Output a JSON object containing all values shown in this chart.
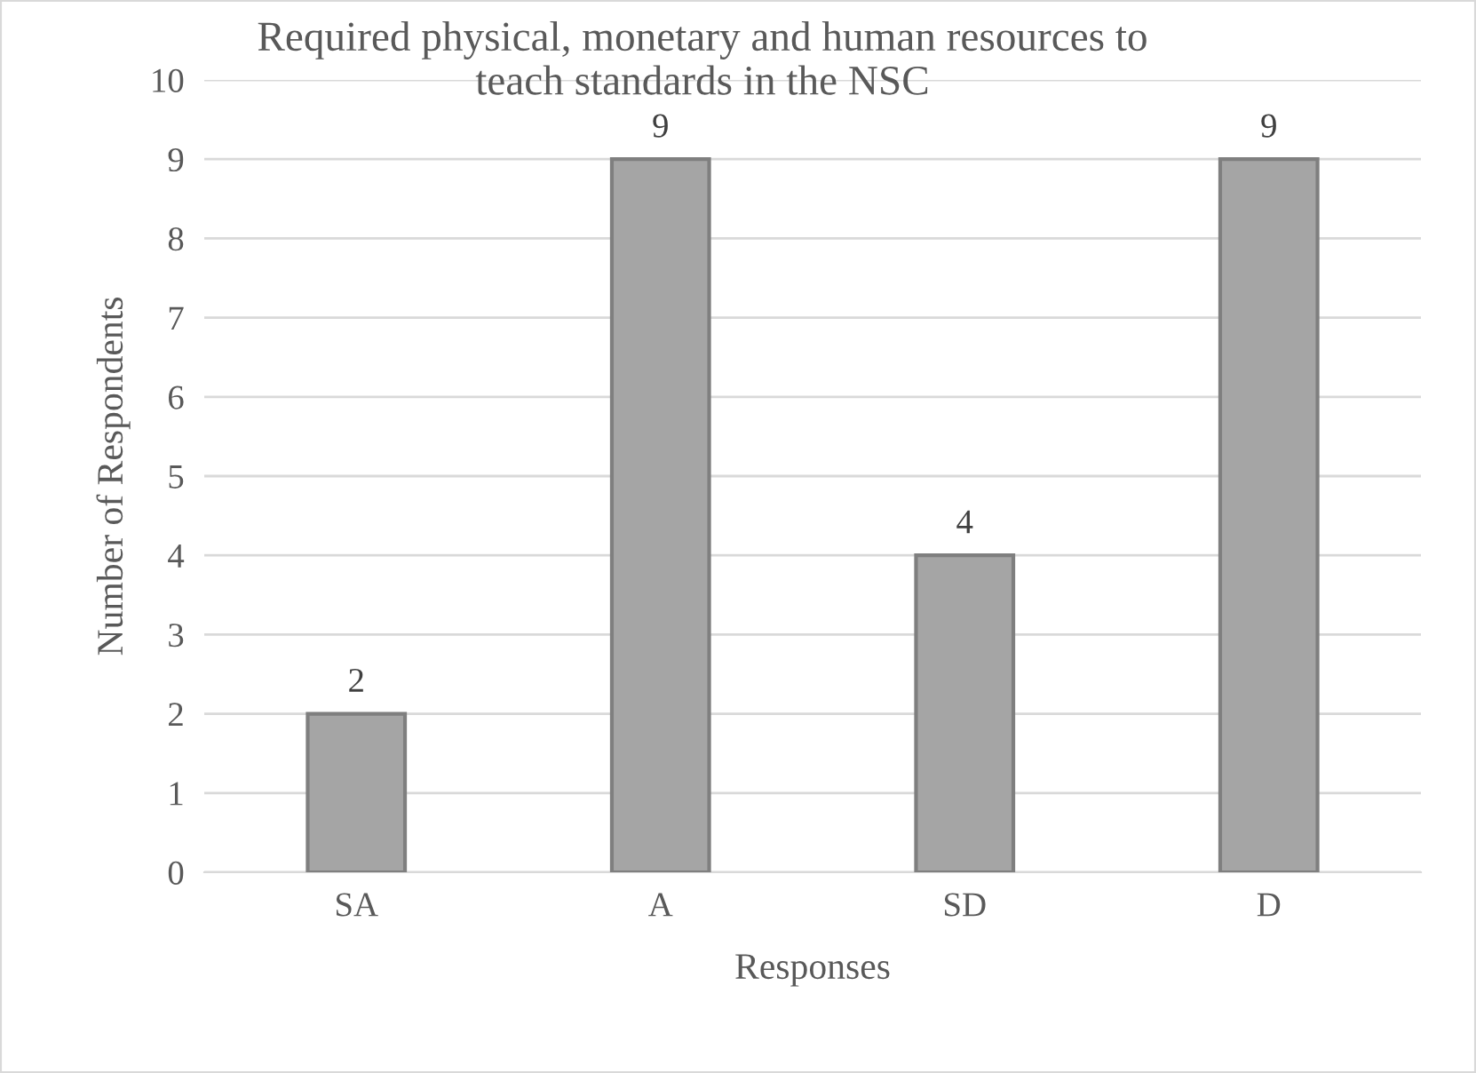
{
  "chart_data": {
    "type": "bar",
    "title": "Required physical, monetary and human resources to\nteach standards in the NSC",
    "xlabel": "Responses",
    "ylabel": "Number of Respondents",
    "categories": [
      "SA",
      "A",
      "SD",
      "D"
    ],
    "values": [
      2,
      9,
      4,
      9
    ],
    "color": "#a5a5a5",
    "ylim": [
      0,
      10
    ],
    "yticks": [
      0,
      1,
      2,
      3,
      4,
      5,
      6,
      7,
      8,
      9,
      10
    ],
    "grid": "y",
    "data_labels": true,
    "legend": false
  }
}
